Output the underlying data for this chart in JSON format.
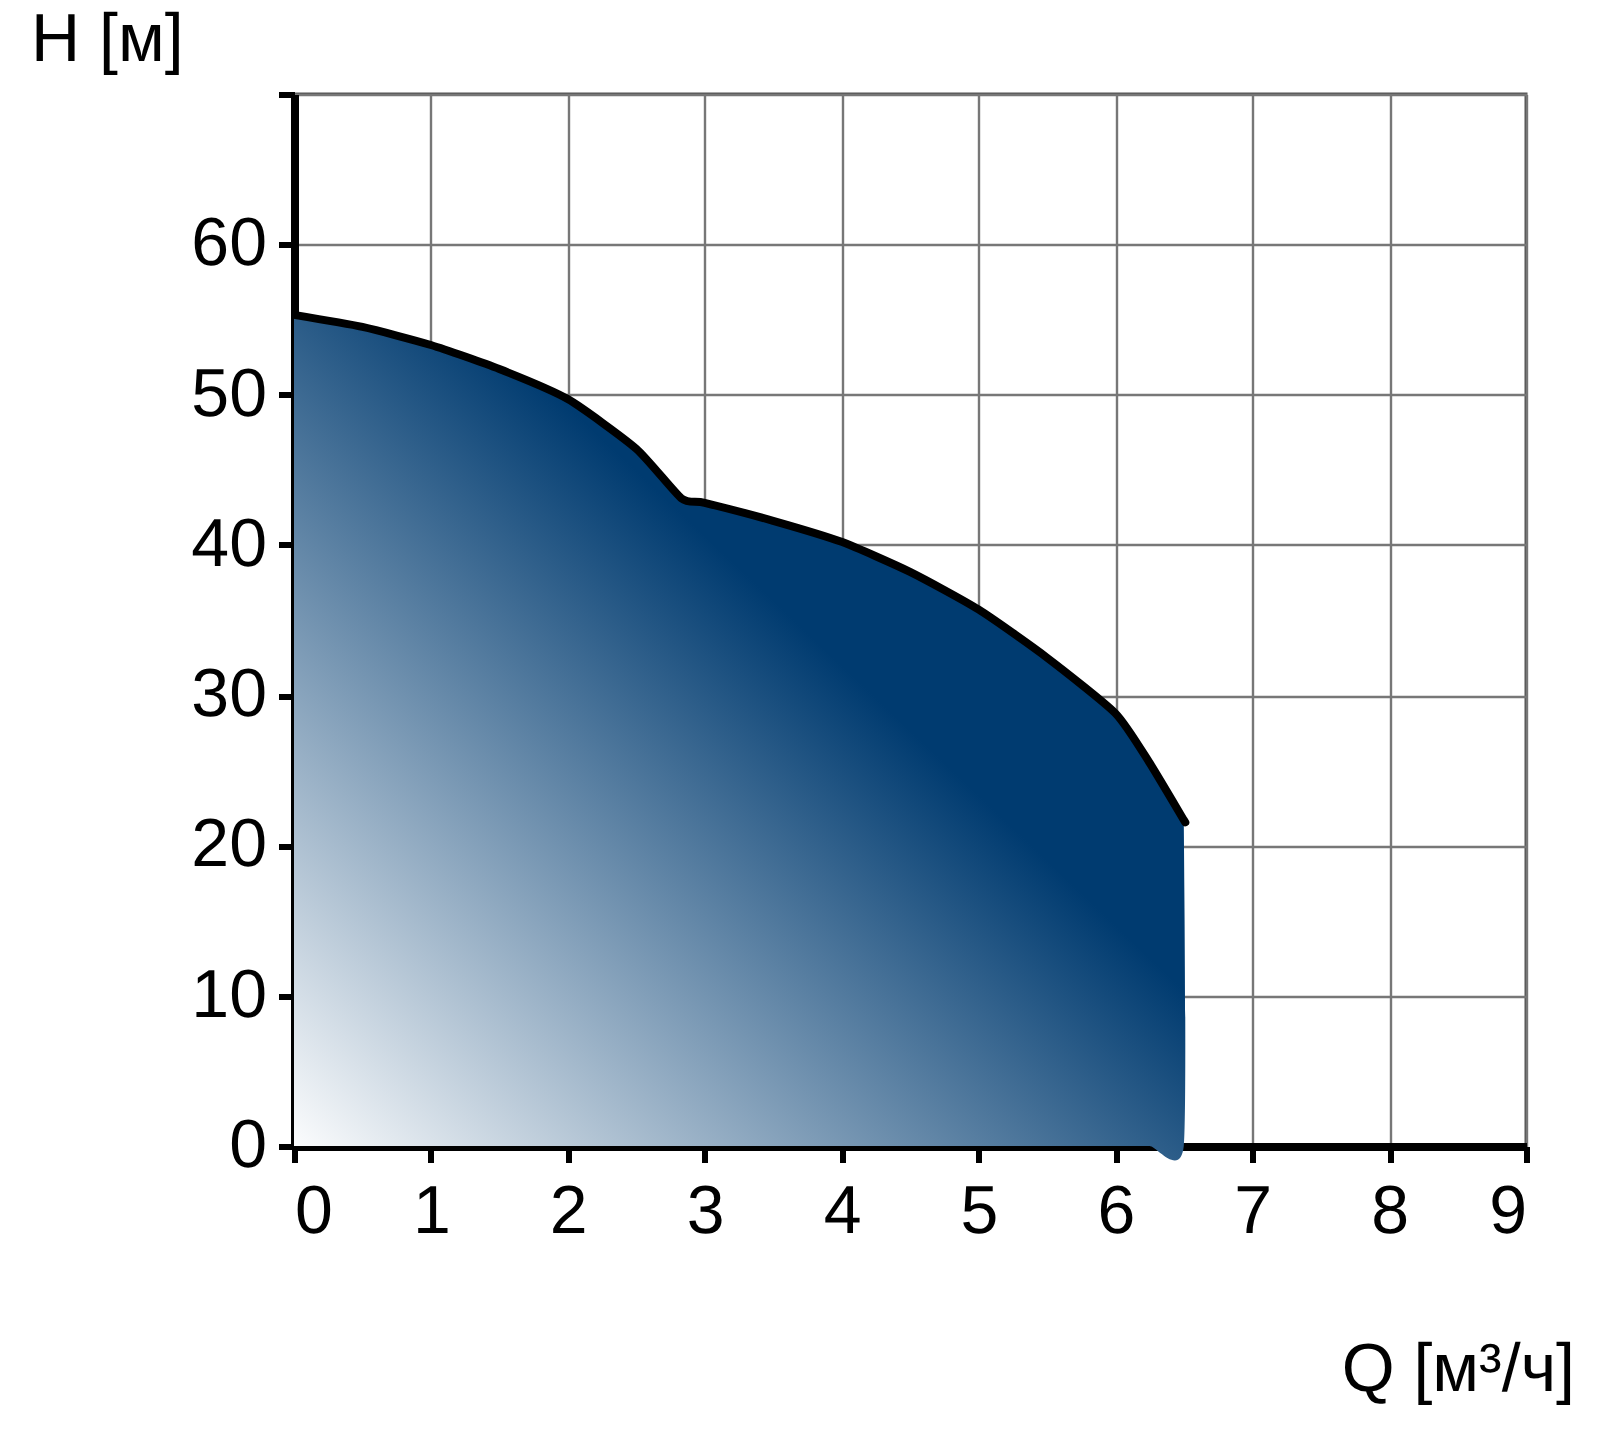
{
  "chart_data": {
    "type": "area",
    "xlabel": "Q [м³/ч]",
    "ylabel": "H [м]",
    "x": [
      0,
      0.5,
      1,
      1.5,
      2,
      2.5,
      2.83,
      3,
      3.5,
      4,
      4.5,
      5,
      5.5,
      6,
      6.25,
      6.5,
      6.5
    ],
    "series": [
      {
        "color": "#003b70",
        "values": [
          55.3,
          54.5,
          53.3,
          51.7,
          49.7,
          46.4,
          43.1,
          42.8,
          41.6,
          40.2,
          38.2,
          35.7,
          32.5,
          28.8,
          25.5,
          21.7,
          0
        ]
      }
    ],
    "xlim": [
      0,
      9
    ],
    "xticks": [
      0,
      1,
      2,
      3,
      4,
      5,
      6,
      7,
      8,
      9
    ],
    "ylim": [
      0,
      70
    ],
    "yticks": [
      0,
      10,
      20,
      30,
      40,
      50,
      60,
      {
        "value": 70,
        "label": null
      }
    ],
    "grid": true
  }
}
